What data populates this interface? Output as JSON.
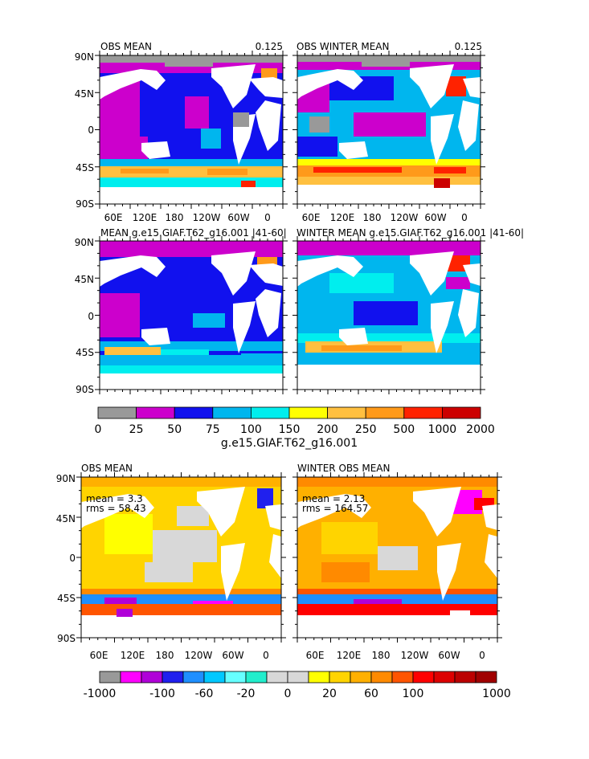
{
  "chart_data": [
    {
      "type": "heatmap",
      "id": "p1",
      "title": "OBS MEAN",
      "title_right": "0.125",
      "lon_ticks": [
        "60E",
        "120E",
        "180",
        "120W",
        "60W",
        "0"
      ],
      "lat_ticks": [
        "90N",
        "45N",
        "0",
        "45S",
        "90S"
      ],
      "show_lon_labels": true
    },
    {
      "type": "heatmap",
      "id": "p2",
      "title": "OBS WINTER MEAN",
      "title_right": "0.125",
      "lon_ticks": [
        "60E",
        "120E",
        "180",
        "120W",
        "60W",
        "0"
      ],
      "lat_ticks": [],
      "show_lon_labels": true
    },
    {
      "type": "heatmap",
      "id": "p3",
      "title": "MEAN g.e15.GIAF.T62_g16.001 |41-60|",
      "lat_ticks": [
        "90N",
        "45N",
        "0",
        "45S",
        "90S"
      ],
      "show_lon_labels": false
    },
    {
      "type": "heatmap",
      "id": "p4",
      "title": "WINTER MEAN g.e15.GIAF.T62_g16.001 |41-60|",
      "lat_ticks": [],
      "show_lon_labels": false
    },
    {
      "type": "heatmap",
      "id": "p5",
      "title": "OBS MEAN",
      "stats": [
        "mean = 3.3",
        "rms = 58.43"
      ],
      "lon_ticks": [
        "60E",
        "120E",
        "180",
        "120W",
        "60W",
        "0"
      ],
      "lat_ticks": [
        "90N",
        "45N",
        "0",
        "45S",
        "90S"
      ],
      "show_lon_labels": true
    },
    {
      "type": "heatmap",
      "id": "p6",
      "title": "WINTER OBS MEAN",
      "stats": [
        "mean = 2.13",
        "rms = 164.57"
      ],
      "lon_ticks": [
        "60E",
        "120E",
        "180",
        "120W",
        "60W",
        "0"
      ],
      "lat_ticks": [],
      "show_lon_labels": true
    }
  ],
  "colorbar_top": {
    "labels": [
      "0",
      "25",
      "50",
      "75",
      "100",
      "150",
      "200",
      "250",
      "500",
      "1000",
      "2000"
    ],
    "colors": [
      "#999999",
      "#cc00cc",
      "#1111ee",
      "#00b6ee",
      "#00eeee",
      "#ffff00",
      "#ffc040",
      "#ff9a1a",
      "#ff2200",
      "#cc0000"
    ],
    "title": "g.e15.GIAF.T62_g16.001"
  },
  "colorbar_bottom": {
    "labels": [
      "-1000",
      "-100",
      "-60",
      "-20",
      "0",
      "20",
      "60",
      "100",
      "1000"
    ],
    "colors": [
      "#999999",
      "#ff00ff",
      "#b000d8",
      "#2020ee",
      "#1f8fff",
      "#00c8ff",
      "#66ffff",
      "#22eecc",
      "#d8d8d8",
      "#d8d8d8",
      "#ffff00",
      "#ffd400",
      "#ffb000",
      "#ff8a00",
      "#ff5500",
      "#ff0000",
      "#dd0000",
      "#bb0000",
      "#a00000"
    ]
  },
  "colors": {
    "land": "#ffffff",
    "ice": "#9a9a9a"
  }
}
